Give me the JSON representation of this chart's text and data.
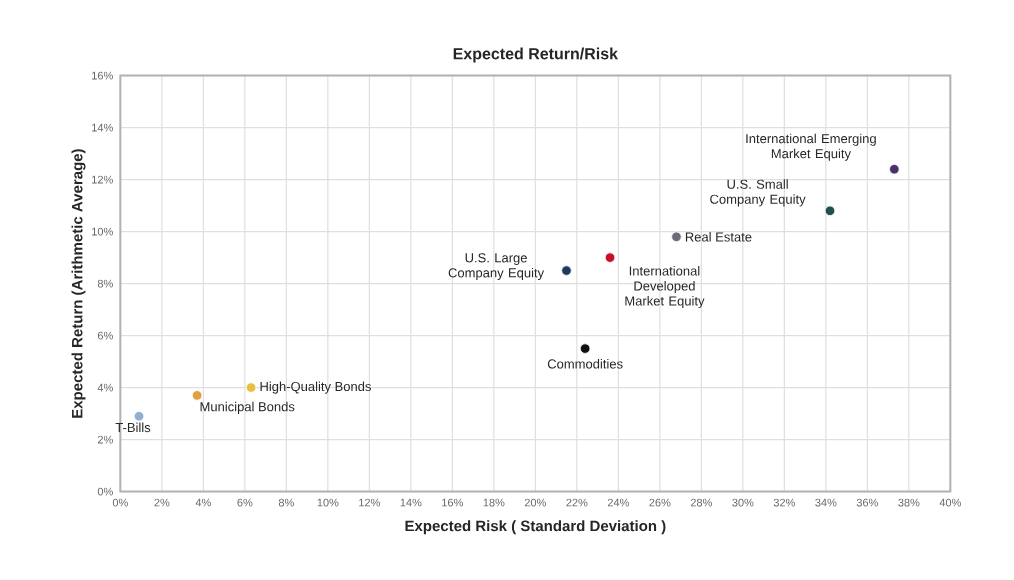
{
  "chart_data": {
    "type": "scatter",
    "title": "Expected Return/Risk",
    "xlabel": "Expected Risk ( Standard Deviation )",
    "ylabel": "Expected Return (Arithmetic Average)",
    "xlim": [
      0,
      40
    ],
    "ylim": [
      0,
      16
    ],
    "xticks": [
      {
        "value": 0,
        "label": "0%"
      },
      {
        "value": 2,
        "label": "2%"
      },
      {
        "value": 4,
        "label": "4%"
      },
      {
        "value": 6,
        "label": "6%"
      },
      {
        "value": 8,
        "label": "8%"
      },
      {
        "value": 10,
        "label": "10%"
      },
      {
        "value": 12,
        "label": "12%"
      },
      {
        "value": 14,
        "label": "14%"
      },
      {
        "value": 16,
        "label": "16%"
      },
      {
        "value": 18,
        "label": "18%"
      },
      {
        "value": 20,
        "label": "20%"
      },
      {
        "value": 22,
        "label": "22%"
      },
      {
        "value": 24,
        "label": "24%"
      },
      {
        "value": 26,
        "label": "26%"
      },
      {
        "value": 28,
        "label": "28%"
      },
      {
        "value": 30,
        "label": "30%"
      },
      {
        "value": 32,
        "label": "32%"
      },
      {
        "value": 34,
        "label": "34%"
      },
      {
        "value": 36,
        "label": "36%"
      },
      {
        "value": 38,
        "label": "38%"
      },
      {
        "value": 40,
        "label": "40%"
      }
    ],
    "yticks": [
      {
        "value": 0,
        "label": "0%"
      },
      {
        "value": 2,
        "label": "2%"
      },
      {
        "value": 4,
        "label": "4%"
      },
      {
        "value": 6,
        "label": "6%"
      },
      {
        "value": 8,
        "label": "8%"
      },
      {
        "value": 10,
        "label": "10%"
      },
      {
        "value": 12,
        "label": "12%"
      },
      {
        "value": 14,
        "label": "14%"
      },
      {
        "value": 16,
        "label": "16%"
      }
    ],
    "grid": true,
    "marker": "circle",
    "series": [
      {
        "name": "T-Bills",
        "color": "#8fb0d0",
        "x": [
          0.9
        ],
        "values": [
          2.9
        ]
      },
      {
        "name": "Municipal Bonds",
        "color": "#e0a040",
        "x": [
          3.7
        ],
        "values": [
          3.7
        ]
      },
      {
        "name": "High-Quality Bonds",
        "color": "#e8c040",
        "x": [
          6.3
        ],
        "values": [
          4.0
        ]
      },
      {
        "name": "Commodities",
        "color": "#101010",
        "x": [
          22.4
        ],
        "values": [
          5.5
        ]
      },
      {
        "name": "U.S. Large Company Equity",
        "color": "#1f3a5f",
        "x": [
          21.5
        ],
        "values": [
          8.5
        ]
      },
      {
        "name": "International Developed Market Equity",
        "color": "#c8102e",
        "x": [
          23.6
        ],
        "values": [
          9.0
        ]
      },
      {
        "name": "Real Estate",
        "color": "#6b6b7b",
        "x": [
          26.8
        ],
        "values": [
          9.8
        ]
      },
      {
        "name": "U.S. Small Company Equity",
        "color": "#1f4f4f",
        "x": [
          34.2
        ],
        "values": [
          10.8
        ]
      },
      {
        "name": "International Emerging Market Equity",
        "color": "#4b2e6e",
        "x": [
          37.3
        ],
        "values": [
          12.4
        ]
      }
    ]
  }
}
